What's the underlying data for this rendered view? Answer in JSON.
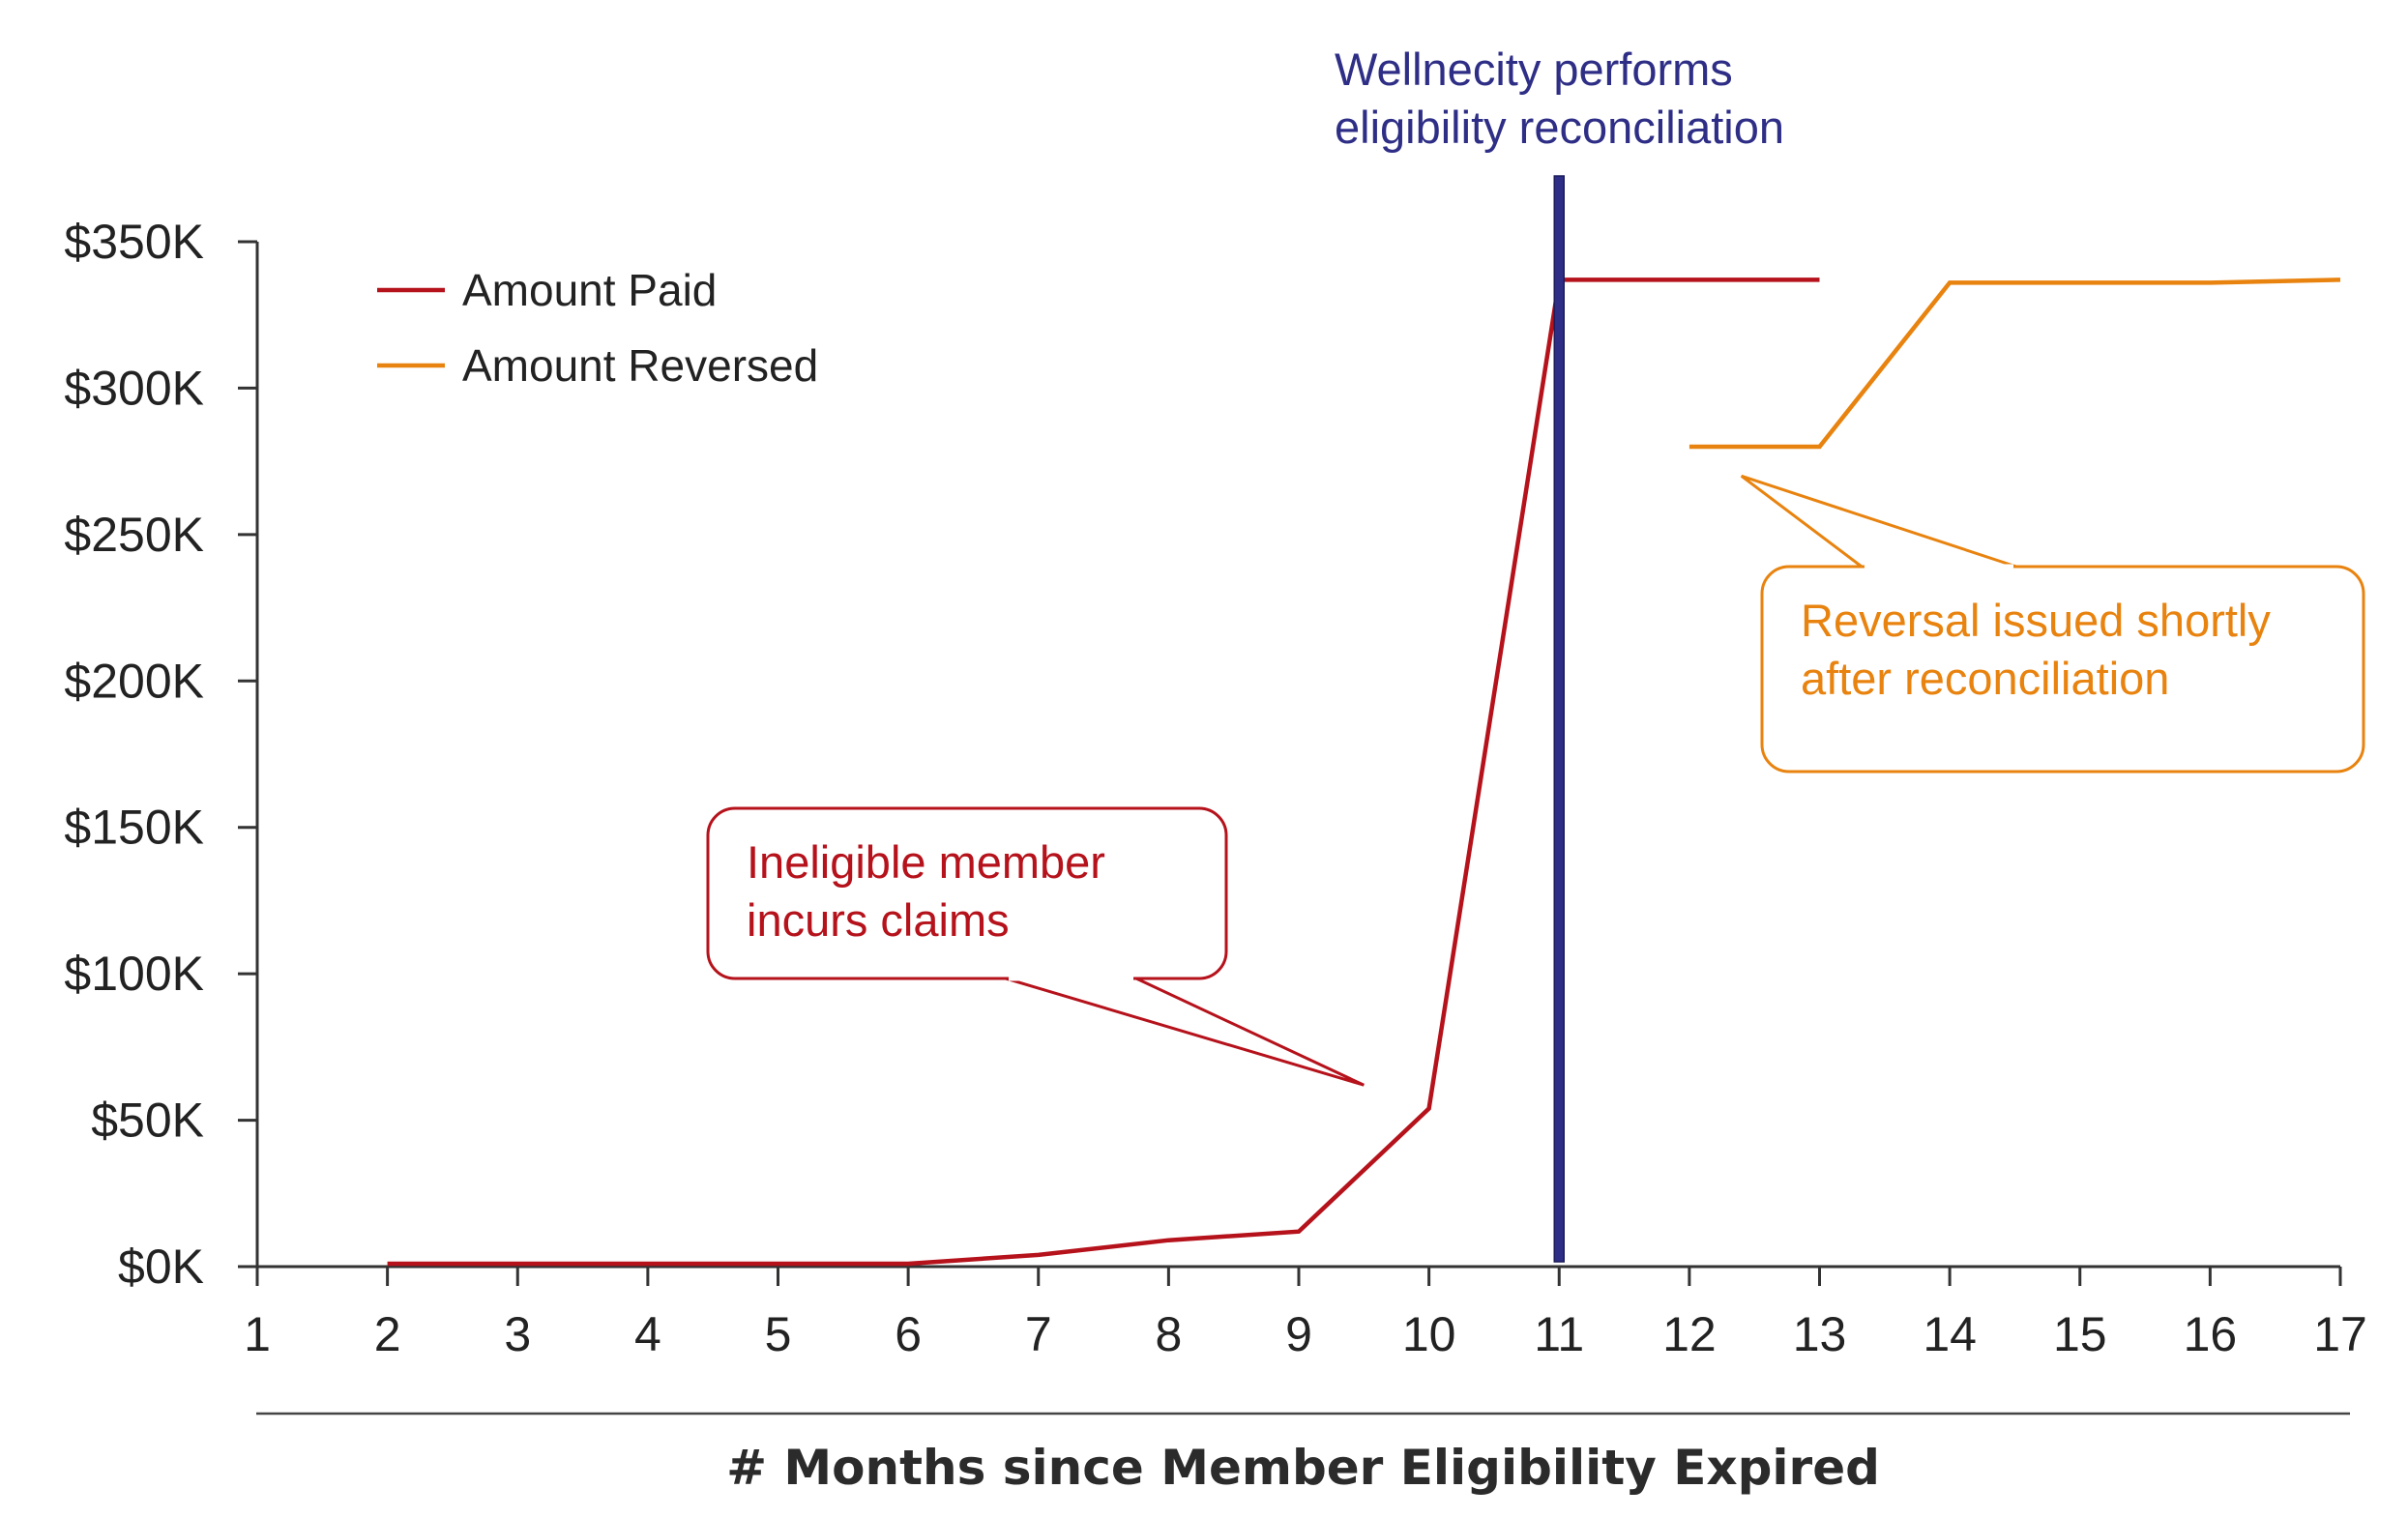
{
  "chart_data": {
    "type": "line",
    "title": "",
    "xlabel": "# Months since Member Eligibility Expired",
    "ylabel": "",
    "x_ticks": [
      1,
      2,
      3,
      4,
      5,
      6,
      7,
      8,
      9,
      10,
      11,
      12,
      13,
      14,
      15,
      16,
      17
    ],
    "y_ticks": [
      "$0K",
      "$50K",
      "$100K",
      "$150K",
      "$200K",
      "$250K",
      "$300K",
      "$350K"
    ],
    "xlim": [
      1,
      17
    ],
    "ylim": [
      0,
      350
    ],
    "y_unit": "$K",
    "grid": false,
    "legend_position": "top-left",
    "series": [
      {
        "name": "Amount Paid",
        "color": "#b5121b",
        "points": [
          [
            2,
            1
          ],
          [
            3,
            1
          ],
          [
            4,
            1
          ],
          [
            5,
            1
          ],
          [
            6,
            1
          ],
          [
            7,
            4
          ],
          [
            8,
            9
          ],
          [
            9,
            12
          ],
          [
            10,
            54
          ],
          [
            11,
            337
          ],
          [
            12,
            337
          ],
          [
            13,
            337
          ]
        ]
      },
      {
        "name": "Amount Reversed",
        "color": "#e8830f",
        "points": [
          [
            12,
            280
          ],
          [
            13,
            280
          ],
          [
            14,
            336
          ],
          [
            15,
            336
          ],
          [
            16,
            336
          ],
          [
            17,
            337
          ]
        ]
      }
    ],
    "reference_line": {
      "x": 11,
      "color": "#2e2e86",
      "label_lines": [
        "Wellnecity performs",
        "eligibility reconciliation"
      ]
    },
    "annotations": [
      {
        "id": "paid-callout",
        "lines": [
          "Ineligible member",
          "incurs claims"
        ],
        "color": "#b5121b",
        "points_to": [
          9.5,
          62
        ]
      },
      {
        "id": "reversed-callout",
        "lines": [
          "Reversal issued shortly",
          "after reconciliation"
        ],
        "color": "#e8830f",
        "points_to": [
          12.4,
          270
        ]
      }
    ]
  }
}
